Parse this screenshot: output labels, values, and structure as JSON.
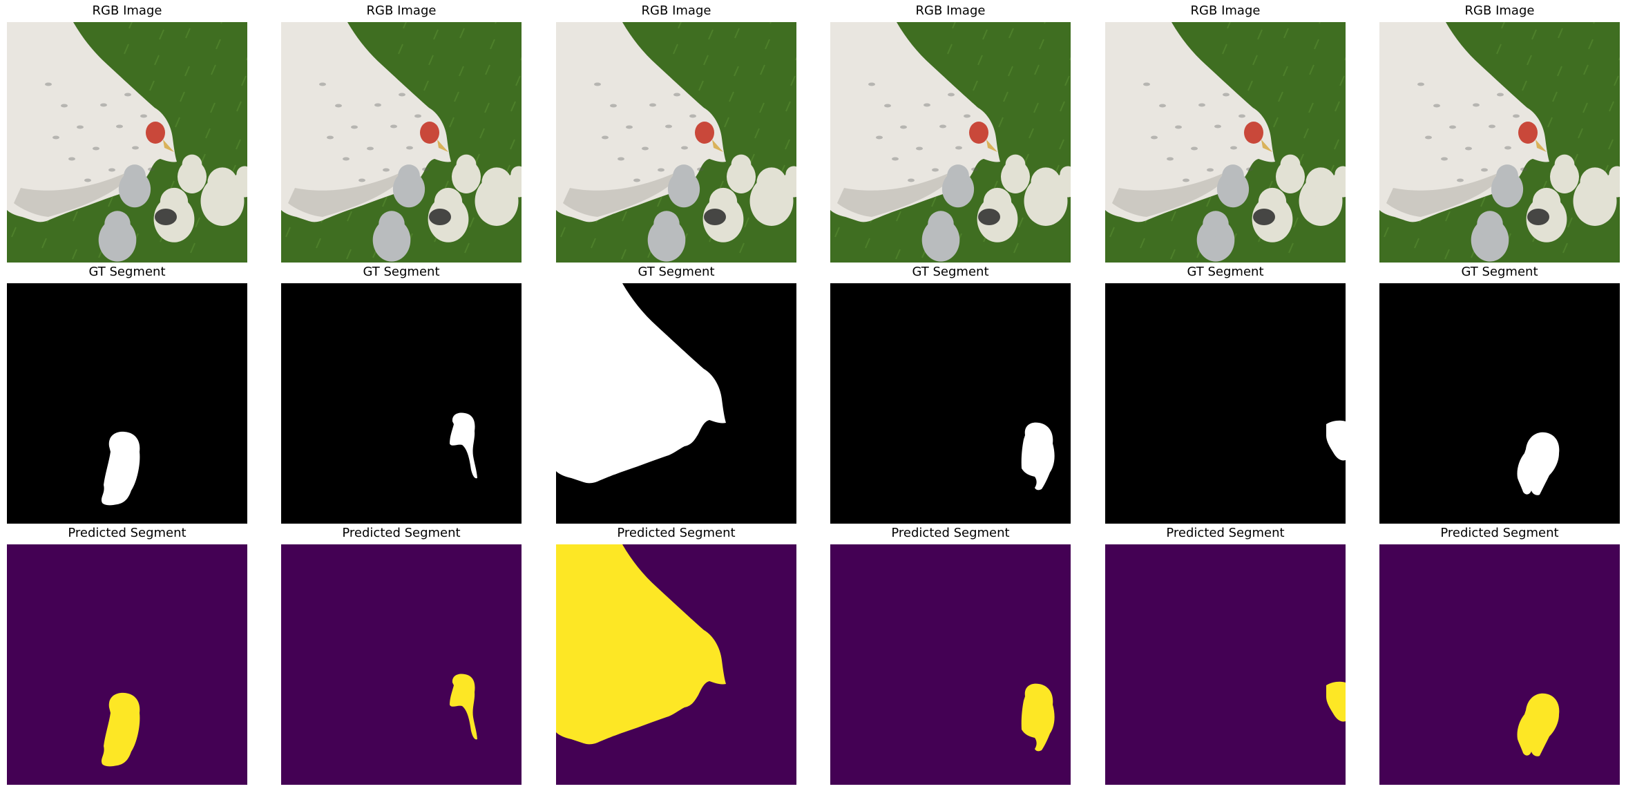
{
  "titles": {
    "rgb": "RGB Image",
    "gt": "GT Segment",
    "pred": "Predicted Segment"
  },
  "colors": {
    "background": "#ffffff",
    "gt_background": "#000000",
    "gt_foreground": "#ffffff",
    "pred_background": "#440154",
    "pred_foreground": "#fde725",
    "grass_dark": "#3f6e21",
    "grass_light": "#5c8f34",
    "hen_body": "#e9e6e0",
    "hen_shadow": "#b9b5ad",
    "comb": "#c9483a",
    "beak": "#d9b25a",
    "chick": "#e2e1d4",
    "chick_grey": "#b9bcbe",
    "chick_dark": "#2a2a2a"
  },
  "columns": [
    {
      "id": "col-1",
      "mask": "chick-left"
    },
    {
      "id": "col-2",
      "mask": "chick-back"
    },
    {
      "id": "col-3",
      "mask": "hen"
    },
    {
      "id": "col-4",
      "mask": "chick-right"
    },
    {
      "id": "col-5",
      "mask": "chick-edge"
    },
    {
      "id": "col-6",
      "mask": "chick-middle"
    }
  ]
}
